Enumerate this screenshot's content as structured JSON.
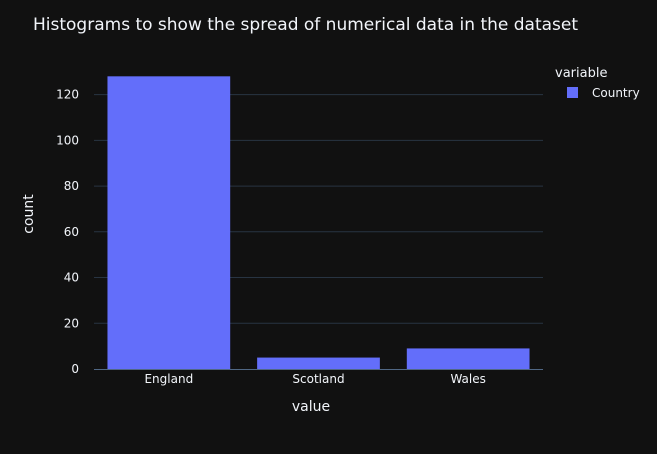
{
  "colors": {
    "background": "#111111",
    "grid": "#283442",
    "text": "#f2f5fa",
    "bar": "#636efa"
  },
  "chart_data": {
    "type": "bar",
    "title": "Histograms to show the spread of numerical data in the dataset",
    "xlabel": "value",
    "ylabel": "count",
    "categories": [
      "England",
      "Scotland",
      "Wales"
    ],
    "series": [
      {
        "name": "Country",
        "values": [
          128,
          5,
          9
        ]
      }
    ],
    "ylim": [
      0,
      134.7
    ],
    "yticks": [
      0,
      20,
      40,
      60,
      80,
      100,
      120
    ],
    "grid": true,
    "legend": {
      "title": "variable",
      "position": "top-right"
    }
  }
}
